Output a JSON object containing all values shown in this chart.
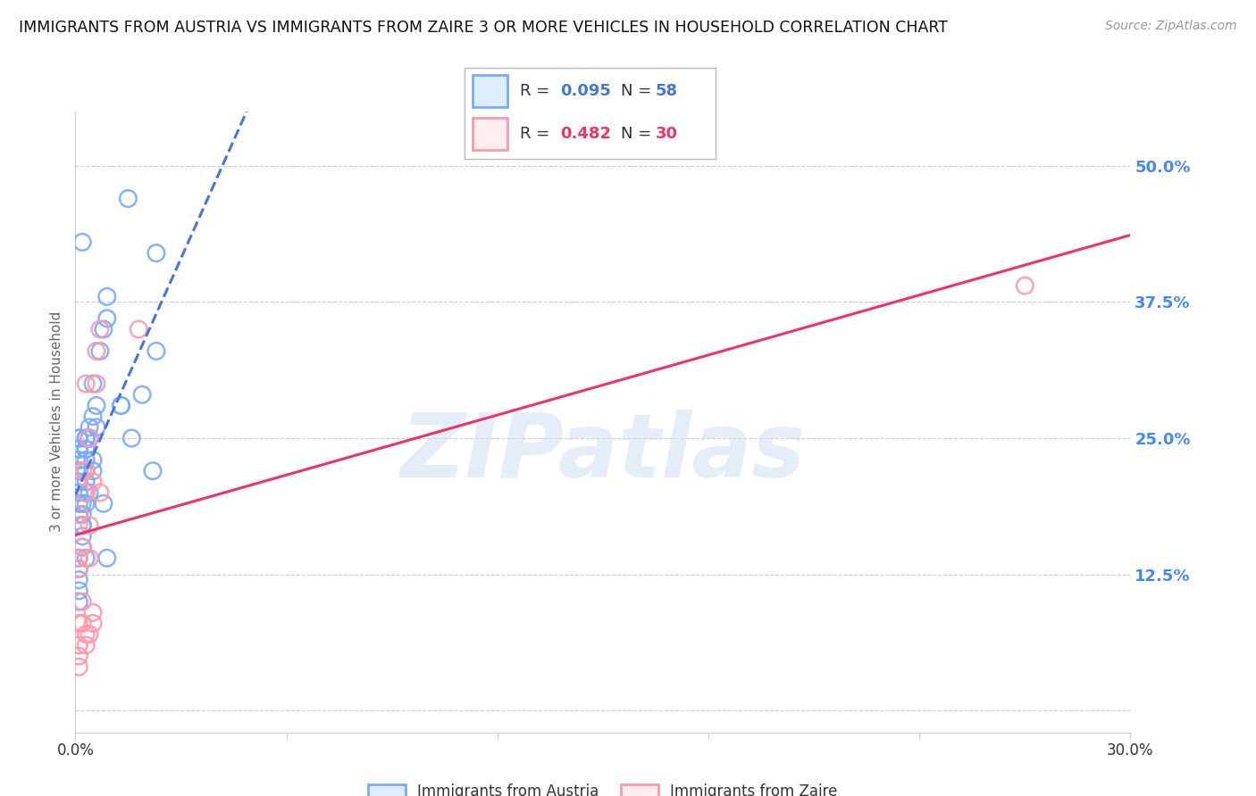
{
  "title": "IMMIGRANTS FROM AUSTRIA VS IMMIGRANTS FROM ZAIRE 3 OR MORE VEHICLES IN HOUSEHOLD CORRELATION CHART",
  "source": "Source: ZipAtlas.com",
  "ylabel": "3 or more Vehicles in Household",
  "ytick_labels": [
    "",
    "12.5%",
    "25.0%",
    "37.5%",
    "50.0%"
  ],
  "ytick_values": [
    0.0,
    0.125,
    0.25,
    0.375,
    0.5
  ],
  "xmin": 0.0,
  "xmax": 0.3,
  "ymin": -0.02,
  "ymax": 0.55,
  "austria_R": 0.095,
  "austria_N": 58,
  "zaire_R": 0.482,
  "zaire_N": 30,
  "austria_color": "#7aaaff",
  "zaire_color": "#ff99aa",
  "austria_line_color": "#4477dd",
  "zaire_line_color": "#ee3366",
  "right_tick_color": "#4488ff",
  "grid_color": "#cccccc",
  "title_color": "#111111",
  "austria_x": [
    0.004,
    0.002,
    0.013,
    0.009,
    0.009,
    0.008,
    0.007,
    0.005,
    0.005,
    0.004,
    0.004,
    0.003,
    0.003,
    0.003,
    0.003,
    0.003,
    0.003,
    0.003,
    0.003,
    0.003,
    0.002,
    0.002,
    0.002,
    0.002,
    0.002,
    0.002,
    0.001,
    0.001,
    0.001,
    0.001,
    0.001,
    0.001,
    0.001,
    0.001,
    0.001,
    0.001,
    0.001,
    0.001,
    0.001,
    0.001,
    0.001,
    0.004,
    0.005,
    0.003,
    0.006,
    0.006,
    0.005,
    0.004,
    0.015,
    0.023,
    0.023,
    0.019,
    0.013,
    0.016,
    0.022,
    0.008,
    0.009,
    0.003
  ],
  "austria_y": [
    0.25,
    0.43,
    0.28,
    0.38,
    0.36,
    0.35,
    0.33,
    0.3,
    0.27,
    0.26,
    0.25,
    0.25,
    0.25,
    0.24,
    0.24,
    0.23,
    0.22,
    0.21,
    0.2,
    0.19,
    0.19,
    0.18,
    0.17,
    0.17,
    0.16,
    0.15,
    0.25,
    0.25,
    0.24,
    0.24,
    0.23,
    0.22,
    0.21,
    0.2,
    0.19,
    0.18,
    0.13,
    0.12,
    0.11,
    0.1,
    0.14,
    0.25,
    0.22,
    0.22,
    0.28,
    0.26,
    0.23,
    0.2,
    0.47,
    0.42,
    0.33,
    0.29,
    0.28,
    0.25,
    0.22,
    0.19,
    0.14,
    0.14
  ],
  "zaire_x": [
    0.001,
    0.001,
    0.001,
    0.001,
    0.001,
    0.001,
    0.001,
    0.001,
    0.002,
    0.002,
    0.002,
    0.003,
    0.003,
    0.003,
    0.003,
    0.004,
    0.004,
    0.004,
    0.004,
    0.005,
    0.005,
    0.005,
    0.006,
    0.006,
    0.007,
    0.007,
    0.018,
    0.27,
    0.002,
    0.003
  ],
  "zaire_y": [
    0.04,
    0.05,
    0.06,
    0.08,
    0.13,
    0.14,
    0.17,
    0.18,
    0.08,
    0.1,
    0.22,
    0.06,
    0.07,
    0.2,
    0.22,
    0.07,
    0.14,
    0.17,
    0.25,
    0.08,
    0.09,
    0.21,
    0.3,
    0.33,
    0.2,
    0.35,
    0.35,
    0.39,
    0.15,
    0.3
  ],
  "watermark_text": "ZIPatlas",
  "background_color": "#ffffff",
  "xtick_positions": [
    0.0,
    0.06,
    0.12,
    0.18,
    0.24,
    0.3
  ],
  "xtick_labels": [
    "0.0%",
    "",
    "",
    "",
    "",
    "30.0%"
  ]
}
